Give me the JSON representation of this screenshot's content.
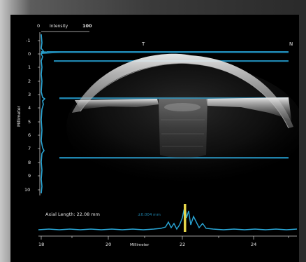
{
  "colors": {
    "background": "#000000",
    "accent_blue": "#1f86b0",
    "trace_blue": "#2aa6d6",
    "peak_yellow": "#e6d64a",
    "text": "#e6e6e6"
  },
  "intensity_axis": {
    "min_label": "0",
    "title": "Intensity",
    "max_label": "100"
  },
  "orientation_labels": {
    "left": "T",
    "right": "N"
  },
  "depth_axis": {
    "title": "Millimeter",
    "ticks": [
      "-1",
      "0",
      "1",
      "2",
      "3",
      "4",
      "5",
      "6",
      "7",
      "8",
      "9",
      "10"
    ]
  },
  "axial": {
    "label": "Axial Length: 22.08 mm",
    "sd_text": "±0.004 mm",
    "x_axis_title": "Millimeter",
    "x_ticks": [
      "18",
      "20",
      "22",
      "24"
    ]
  }
}
